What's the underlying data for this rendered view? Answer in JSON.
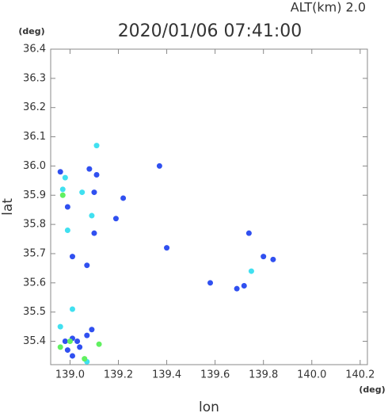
{
  "chart_data": {
    "type": "scatter",
    "title": "2020/01/06 07:41:00",
    "annotation": "ALT(km) 2.0",
    "x_unit": "(deg)",
    "y_unit": "(deg)",
    "x_label": "lon",
    "y_label": "lat",
    "xlim": [
      138.92,
      140.23
    ],
    "ylim": [
      35.32,
      36.4
    ],
    "xticks": [
      {
        "value": 139,
        "label": "139.0"
      },
      139.2,
      139.4,
      139.6,
      139.8,
      {
        "value": 140,
        "label": "140.0"
      },
      140.2
    ],
    "yticks": [
      35.4,
      35.5,
      35.6,
      35.7,
      35.8,
      35.9,
      {
        "value": 36,
        "label": "36.0"
      },
      36.1,
      36.2,
      36.3,
      36.4
    ],
    "series": [
      {
        "color": "#3050f0",
        "x": [
          138.99,
          139.1,
          139.01,
          139.22,
          139.19,
          138.99,
          139.03,
          139.09,
          139.04,
          139.01,
          139.07,
          139.1,
          139.08,
          138.96,
          139.58,
          139.4,
          139.74,
          139.8,
          139.69,
          139.72,
          139.84,
          139.01,
          138.98,
          139.07,
          139.11,
          139.37
        ],
        "y": [
          35.86,
          35.77,
          35.69,
          35.89,
          35.82,
          35.37,
          35.4,
          35.44,
          35.38,
          35.35,
          35.42,
          35.91,
          35.99,
          35.98,
          35.6,
          35.72,
          35.77,
          35.69,
          35.58,
          35.59,
          35.68,
          35.41,
          35.4,
          35.66,
          35.97,
          36.0
        ]
      },
      {
        "color": "#40e0f0",
        "x": [
          138.97,
          138.99,
          139.11,
          139.05,
          139.09,
          139.01,
          139.07,
          138.96,
          139.75,
          138.98
        ],
        "y": [
          35.92,
          35.78,
          36.07,
          35.91,
          35.83,
          35.51,
          35.33,
          35.45,
          35.64,
          35.96
        ]
      },
      {
        "color": "#60f060",
        "x": [
          139.12,
          138.97,
          138.96,
          139.06,
          139.0
        ],
        "y": [
          35.39,
          35.9,
          35.38,
          35.34,
          35.4
        ]
      }
    ]
  }
}
